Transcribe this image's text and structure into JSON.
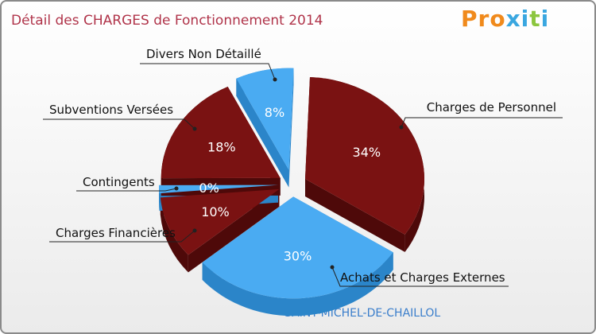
{
  "title": "Détail des CHARGES de Fonctionnement 2014",
  "logo": {
    "text": "Proxiti",
    "letters": [
      {
        "ch": "P",
        "color": "#f08a1c"
      },
      {
        "ch": "r",
        "color": "#f08a1c"
      },
      {
        "ch": "o",
        "color": "#f08a1c"
      },
      {
        "ch": "x",
        "color": "#3aa7e0"
      },
      {
        "ch": "i",
        "color": "#3aa7e0"
      },
      {
        "ch": "t",
        "color": "#8cc63f"
      },
      {
        "ch": "i",
        "color": "#3aa7e0"
      }
    ]
  },
  "subtitle": "SAINT-MICHEL-DE-CHAILLOL",
  "colors": {
    "dark_red": "#7a1212",
    "dark_red_side": "#4e0909",
    "blue": "#4aabf2",
    "blue_side": "#2b85c9",
    "title": "#b0344a"
  },
  "chart_data": {
    "type": "pie",
    "title": "Détail des CHARGES de Fonctionnement 2014",
    "subtitle": "SAINT-MICHEL-DE-CHAILLOL",
    "slices": [
      {
        "label": "Charges de Personnel",
        "value": 34,
        "display": "34%",
        "color": "#7a1212",
        "side": "#4e0909"
      },
      {
        "label": "Achats et Charges Externes",
        "value": 30,
        "display": "30%",
        "color": "#4aabf2",
        "side": "#2b85c9"
      },
      {
        "label": "Charges Financières",
        "value": 10,
        "display": "10%",
        "color": "#7a1212",
        "side": "#4e0909"
      },
      {
        "label": "Contingents",
        "value": 0,
        "display": "0%",
        "color": "#4aabf2",
        "side": "#2b85c9"
      },
      {
        "label": "Subventions Versées",
        "value": 18,
        "display": "18%",
        "color": "#7a1212",
        "side": "#4e0909"
      },
      {
        "label": "Divers Non Détaillé",
        "value": 8,
        "display": "8%",
        "color": "#4aabf2",
        "side": "#2b85c9"
      }
    ]
  }
}
